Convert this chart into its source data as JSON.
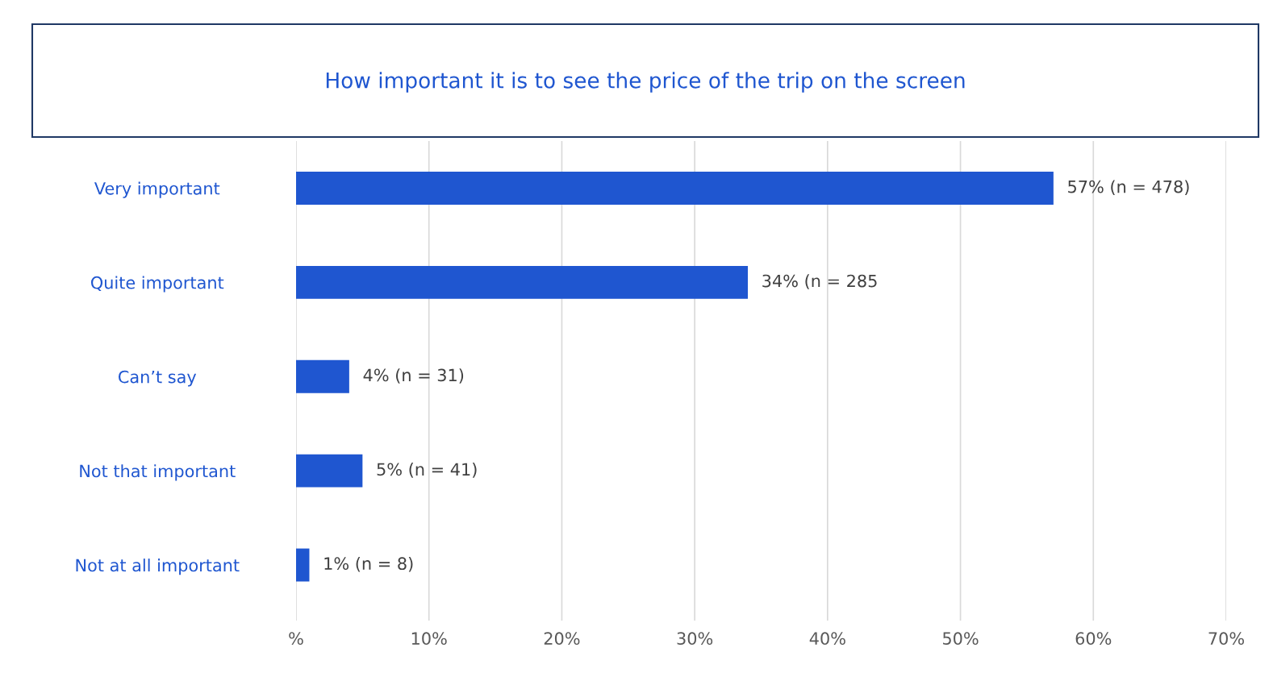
{
  "chart_data": {
    "type": "bar",
    "orientation": "horizontal",
    "title": "How important it is to see the price of the trip on the screen",
    "categories": [
      "Very important",
      "Quite important",
      "Can’t say",
      "Not that important",
      "Not at all important"
    ],
    "values": [
      57,
      34,
      4,
      5,
      1
    ],
    "value_labels": [
      "57% (n = 478)",
      "34% (n = 285",
      "4% (n = 31)",
      "5% (n = 41)",
      "1% (n = 8)"
    ],
    "color": "#1f56d0",
    "xlim": [
      0,
      70
    ],
    "xticks": [
      {
        "value": 0,
        "label": "%"
      },
      {
        "value": 10,
        "label": "10%"
      },
      {
        "value": 20,
        "label": "20%"
      },
      {
        "value": 30,
        "label": "30%"
      },
      {
        "value": 40,
        "label": "40%"
      },
      {
        "value": 50,
        "label": "50%"
      },
      {
        "value": 60,
        "label": "60%"
      },
      {
        "value": 70,
        "label": "70%"
      }
    ],
    "grid": "x"
  }
}
